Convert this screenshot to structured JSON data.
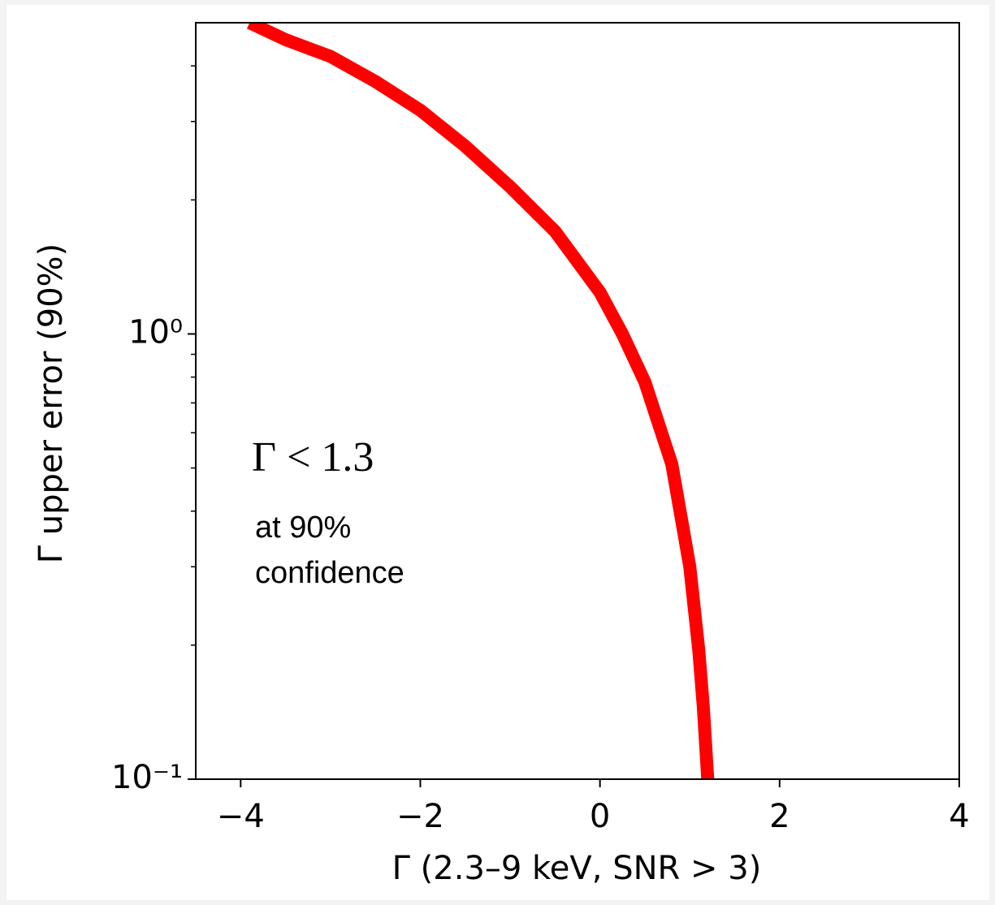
{
  "chart_data": {
    "type": "line",
    "xlabel": "Γ (2.3–9 keV, SNR > 3)",
    "ylabel": "Γ upper error (90%)",
    "annotations": [
      "Γ < 1.3",
      "at 90%",
      "confidence"
    ],
    "x": [
      -3.9,
      -3.5,
      -3,
      -2.5,
      -2,
      -1.5,
      -1,
      -0.5,
      0,
      0.25,
      0.5,
      0.8,
      1.0,
      1.1,
      1.15,
      1.2
    ],
    "series": [
      {
        "color": "#ff0000",
        "values": [
          5,
          4.58,
          4.2,
          3.69,
          3.18,
          2.64,
          2.14,
          1.7,
          1.24,
          1.0,
          0.78,
          0.51,
          0.3,
          0.195,
          0.146,
          0.1
        ]
      }
    ],
    "xlim": [
      -4.5,
      4
    ],
    "xticks": [
      {
        "value": -4,
        "label": "−4"
      },
      {
        "value": -2,
        "label": "−2"
      },
      0,
      2,
      4
    ],
    "ylim": [
      0.1,
      5
    ],
    "yscale": "log",
    "yticks": [
      {
        "value": 0.1,
        "label": "10⁻¹"
      },
      {
        "value": 1,
        "label": "10⁰"
      }
    ],
    "yminor_ticks": [
      0.2,
      0.3,
      0.4,
      0.5,
      0.6,
      0.7,
      0.8,
      0.9,
      2,
      3,
      4
    ]
  }
}
